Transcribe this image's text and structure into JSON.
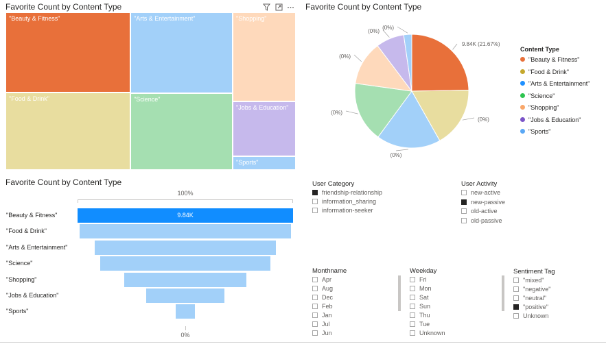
{
  "treemap": {
    "title": "Favorite Count by Content Type",
    "cells": [
      {
        "label": "\"Beauty & Fitness\"",
        "color": "#e8703a"
      },
      {
        "label": "\"Food & Drink\"",
        "color": "#e8dd9f"
      },
      {
        "label": "\"Arts & Entertainment\"",
        "color": "#a2d0f9"
      },
      {
        "label": "\"Science\"",
        "color": "#a5dfb1"
      },
      {
        "label": "\"Shopping\"",
        "color": "#fed9bb"
      },
      {
        "label": "\"Jobs & Education\"",
        "color": "#c6b9ec"
      },
      {
        "label": "\"Sports\"",
        "color": "#a2d0f9"
      }
    ],
    "icons": [
      "filter-icon",
      "focus-mode-icon",
      "more-options-icon"
    ]
  },
  "pie": {
    "title": "Favorite Count by Content Type",
    "legend_title": "Content Type",
    "slices": [
      {
        "name": "\"Beauty & Fitness\"",
        "color": "#e8703a",
        "label": "9.84K (21.67%)"
      },
      {
        "name": "\"Food & Drink\"",
        "color": "#e8dd9f",
        "label": "(0%)"
      },
      {
        "name": "\"Arts & Entertainment\"",
        "color": "#a2d0f9",
        "label": "(0%)"
      },
      {
        "name": "\"Science\"",
        "color": "#a5dfb1",
        "label": "(0%)"
      },
      {
        "name": "\"Shopping\"",
        "color": "#fed9bb",
        "label": "(0%)"
      },
      {
        "name": "\"Jobs & Education\"",
        "color": "#c6b9ec",
        "label": "(0%)"
      },
      {
        "name": "\"Sports\"",
        "color": "#a2d0f9",
        "label": "(0%)"
      }
    ],
    "legend": [
      {
        "name": "\"Beauty & Fitness\"",
        "color": "#e8703a"
      },
      {
        "name": "\"Food & Drink\"",
        "color": "#c5a82d"
      },
      {
        "name": "\"Arts & Entertainment\"",
        "color": "#1e90ff"
      },
      {
        "name": "\"Science\"",
        "color": "#2ec450"
      },
      {
        "name": "\"Shopping\"",
        "color": "#f9a76a"
      },
      {
        "name": "\"Jobs & Education\"",
        "color": "#7b55c8"
      },
      {
        "name": "\"Sports\"",
        "color": "#5aa8f5"
      }
    ]
  },
  "funnel": {
    "title": "Favorite Count by Content Type",
    "top_label": "100%",
    "bottom_label": "0%"
  },
  "chart_data": [
    {
      "type": "treemap",
      "title": "Favorite Count by Content Type",
      "categories": [
        "\"Beauty & Fitness\"",
        "\"Food & Drink\"",
        "\"Arts & Entertainment\"",
        "\"Science\"",
        "\"Shopping\"",
        "\"Jobs & Education\"",
        "\"Sports\""
      ]
    },
    {
      "type": "pie",
      "title": "Favorite Count by Content Type",
      "categories": [
        "\"Beauty & Fitness\"",
        "\"Food & Drink\"",
        "\"Arts & Entertainment\"",
        "\"Science\"",
        "\"Shopping\"",
        "\"Jobs & Education\"",
        "\"Sports\""
      ],
      "values": [
        21.67,
        15.0,
        16.0,
        15.0,
        11.0,
        7.0,
        2.0
      ],
      "highlighted": [
        9840,
        0,
        0,
        0,
        0,
        0,
        0
      ],
      "legend_position": "right"
    },
    {
      "type": "funnel",
      "title": "Favorite Count by Content Type",
      "categories": [
        "\"Beauty & Fitness\"",
        "\"Food & Drink\"",
        "\"Arts & Entertainment\"",
        "\"Science\"",
        "\"Shopping\"",
        "\"Jobs & Education\"",
        "\"Sports\""
      ],
      "values": [
        100,
        98,
        84,
        79,
        57,
        36,
        9
      ],
      "highlighted_value_label": "9.84K",
      "highlight_color": "#118dff",
      "base_color": "#a2d0f9"
    }
  ],
  "slicers": {
    "user_category": {
      "title": "User Category",
      "options": [
        {
          "label": "friendship-relationship",
          "checked": true
        },
        {
          "label": "information_sharing",
          "checked": false
        },
        {
          "label": "information-seeker",
          "checked": false
        }
      ]
    },
    "user_activity": {
      "title": "User Activity",
      "options": [
        {
          "label": "new-active",
          "checked": false
        },
        {
          "label": "new-passive",
          "checked": true
        },
        {
          "label": "old-active",
          "checked": false
        },
        {
          "label": "old-passive",
          "checked": false
        }
      ]
    },
    "monthname": {
      "title": "Monthname",
      "options": [
        {
          "label": "Apr",
          "checked": false
        },
        {
          "label": "Aug",
          "checked": false
        },
        {
          "label": "Dec",
          "checked": false
        },
        {
          "label": "Feb",
          "checked": false
        },
        {
          "label": "Jan",
          "checked": false
        },
        {
          "label": "Jul",
          "checked": false
        },
        {
          "label": "Jun",
          "checked": false
        }
      ]
    },
    "weekday": {
      "title": "Weekday",
      "options": [
        {
          "label": "Fri",
          "checked": false
        },
        {
          "label": "Mon",
          "checked": false
        },
        {
          "label": "Sat",
          "checked": false
        },
        {
          "label": "Sun",
          "checked": false
        },
        {
          "label": "Thu",
          "checked": false
        },
        {
          "label": "Tue",
          "checked": false
        },
        {
          "label": "Unknown",
          "checked": false
        }
      ]
    },
    "sentiment": {
      "title": "Sentiment Tag",
      "options": [
        {
          "label": "\"mixed\"",
          "checked": false
        },
        {
          "label": "\"negative\"",
          "checked": false
        },
        {
          "label": "\"neutral\"",
          "checked": false
        },
        {
          "label": "\"positive\"",
          "checked": true
        },
        {
          "label": "Unknown",
          "checked": false
        }
      ]
    }
  }
}
